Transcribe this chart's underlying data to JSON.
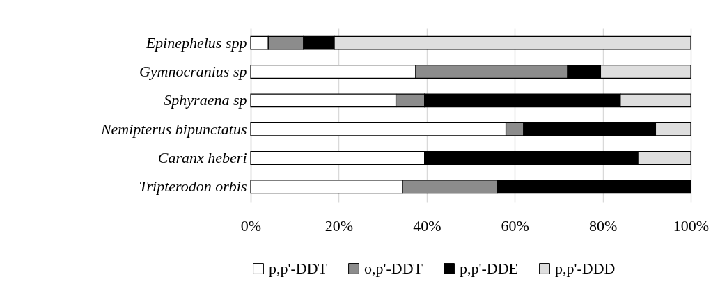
{
  "chart_data": {
    "type": "bar",
    "orientation": "horizontal",
    "stacked": true,
    "categories": [
      "Epinephelus spp",
      "Gymnocranius sp",
      "Sphyraena sp",
      "Nemipterus bipunctatus",
      "Caranx heberi",
      "Tripterodon orbis"
    ],
    "series": [
      {
        "name": "p,p'-DDT",
        "color": "#ffffff",
        "values": [
          4,
          37.5,
          33,
          58,
          39.5,
          34.5
        ]
      },
      {
        "name": "o,p'-DDT",
        "color": "#8c8c8c",
        "values": [
          8,
          34.5,
          6.5,
          4,
          0,
          21.5
        ]
      },
      {
        "name": "p,p'-DDE",
        "color": "#000000",
        "values": [
          7,
          7.5,
          44.5,
          30,
          48.5,
          44
        ]
      },
      {
        "name": "p,p'-DDD",
        "color": "#dedede",
        "values": [
          81,
          20.5,
          16,
          8,
          12,
          0
        ]
      }
    ],
    "xlim": [
      0,
      100
    ],
    "xticks": [
      {
        "value": 0,
        "label": "0%"
      },
      {
        "value": 20,
        "label": "20%"
      },
      {
        "value": 40,
        "label": "40%"
      },
      {
        "value": 60,
        "label": "60%"
      },
      {
        "value": 80,
        "label": "80%"
      },
      {
        "value": 100,
        "label": "100%"
      }
    ],
    "grid": "x",
    "legend": "bottom"
  }
}
